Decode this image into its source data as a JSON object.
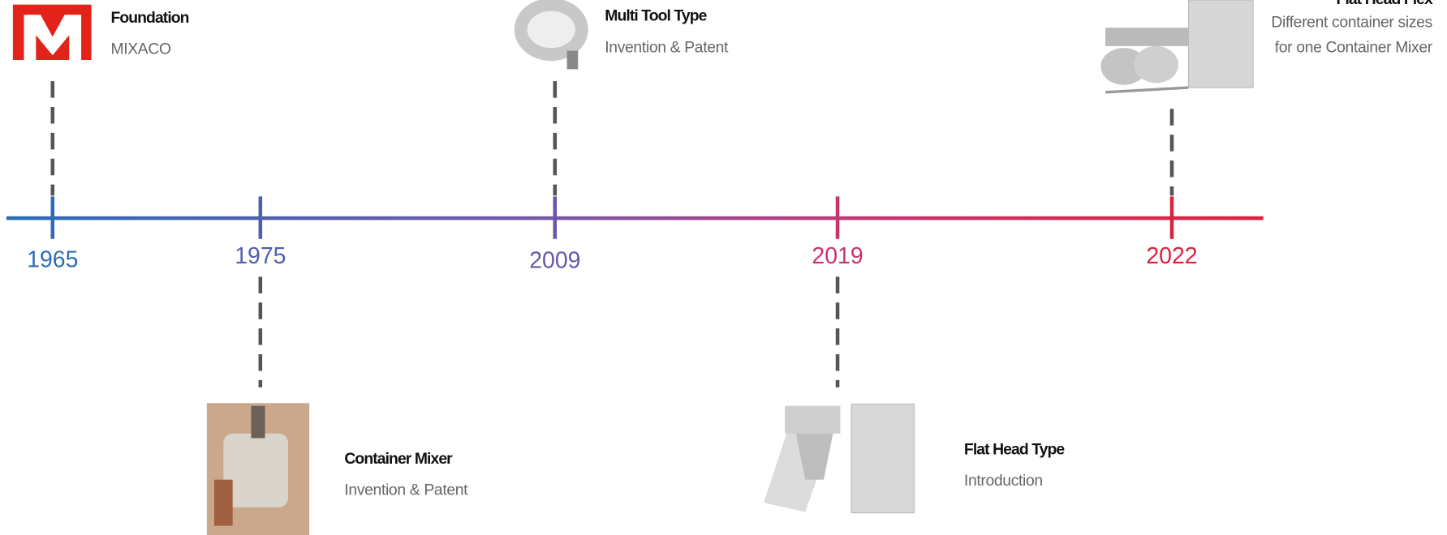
{
  "timeline": {
    "events": [
      {
        "year": "1965",
        "title": "Foundation",
        "lines": [
          "MIXACO"
        ]
      },
      {
        "year": "1975",
        "title": "Container Mixer",
        "lines": [
          "Invention & Patent"
        ]
      },
      {
        "year": "2009",
        "title": "Multi Tool Type",
        "lines": [
          "Invention & Patent"
        ]
      },
      {
        "year": "2019",
        "title": "Flat Head Type",
        "lines": [
          "Introduction"
        ]
      },
      {
        "year": "2022",
        "title": "Flat Head Flex",
        "lines": [
          "Different container sizes",
          "for one Container Mixer"
        ]
      }
    ]
  }
}
